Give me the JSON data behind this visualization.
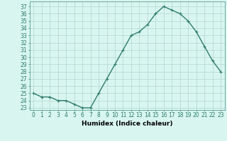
{
  "x": [
    0,
    1,
    2,
    3,
    4,
    5,
    6,
    7,
    8,
    9,
    10,
    11,
    12,
    13,
    14,
    15,
    16,
    17,
    18,
    19,
    20,
    21,
    22,
    23
  ],
  "y": [
    25,
    24.5,
    24.5,
    24,
    24,
    23.5,
    23,
    23,
    25,
    27,
    29,
    31,
    33,
    33.5,
    34.5,
    36,
    37,
    36.5,
    36,
    35,
    33.5,
    31.5,
    29.5,
    28
  ],
  "line_color": "#2e7d6e",
  "marker": "+",
  "marker_size": 3,
  "bg_color": "#d8f5f0",
  "grid_color": "#aacfc8",
  "xlabel": "Humidex (Indice chaleur)",
  "ylabel_ticks": [
    23,
    24,
    25,
    26,
    27,
    28,
    29,
    30,
    31,
    32,
    33,
    34,
    35,
    36,
    37
  ],
  "ylim": [
    22.7,
    37.7
  ],
  "xlim": [
    -0.5,
    23.5
  ],
  "xlabel_fontsize": 6.5,
  "tick_fontsize": 5.5,
  "line_width": 1.0,
  "spine_color": "#5aa090"
}
